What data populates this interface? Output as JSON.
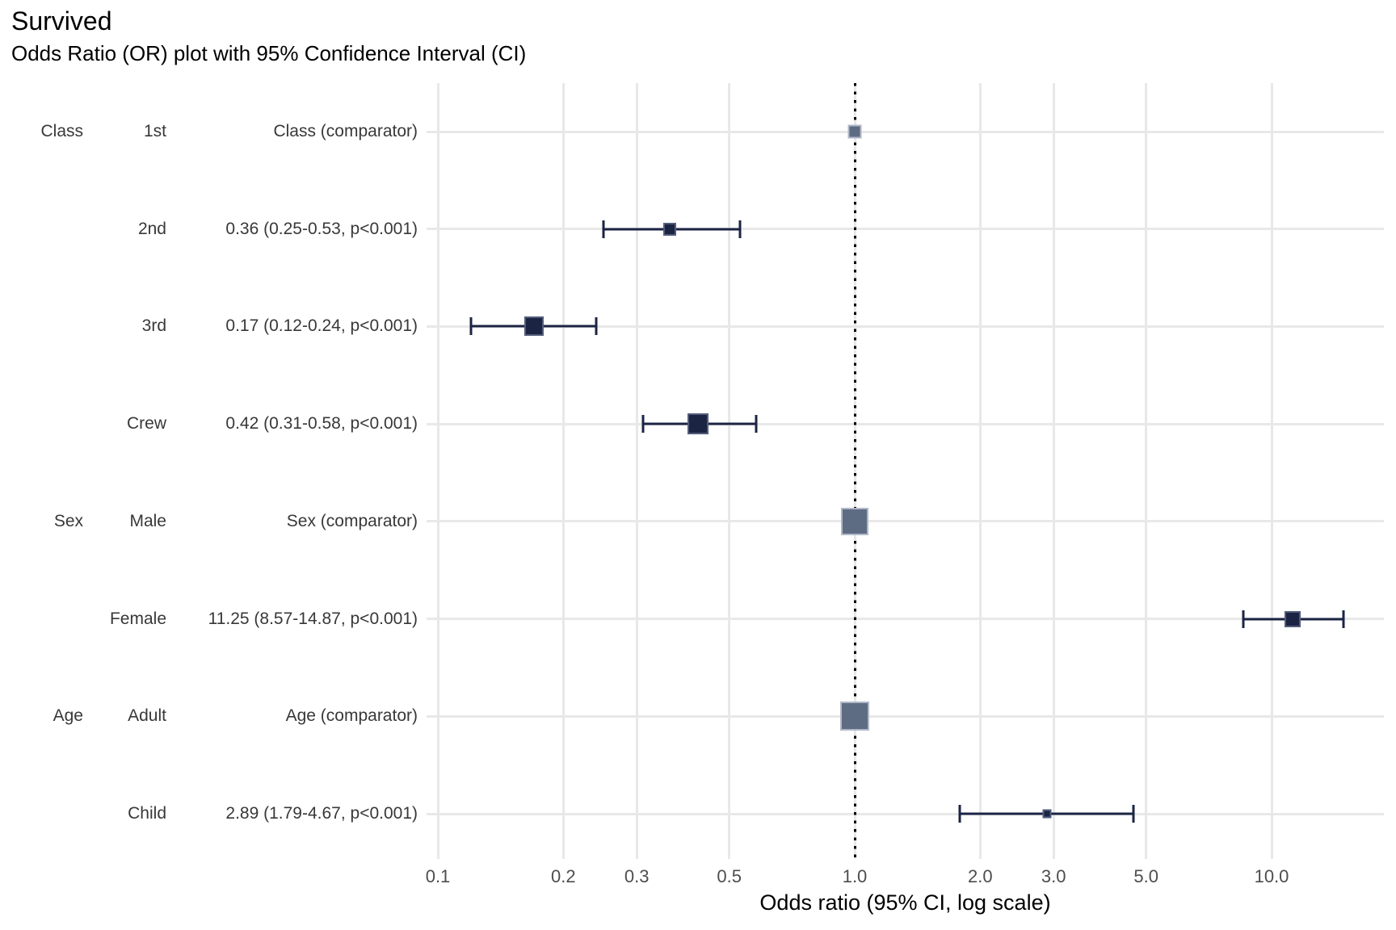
{
  "header": {
    "title": "Survived",
    "subtitle": "Odds Ratio (OR) plot with 95% Confidence Interval (CI)"
  },
  "chart_data": {
    "type": "forest-plot",
    "title": "Survived",
    "subtitle": "Odds Ratio (OR) plot with 95% Confidence Interval (CI)",
    "xlabel": "Odds ratio (95% CI, log scale)",
    "x_scale": "log10",
    "x_ticks": [
      0.1,
      0.2,
      0.3,
      0.5,
      1.0,
      2.0,
      3.0,
      5.0,
      10.0
    ],
    "x_tick_labels": [
      "0.1",
      "0.2",
      "0.3",
      "0.5",
      "1.0",
      "2.0",
      "3.0",
      "5.0",
      "10.0"
    ],
    "reference_line_x": 1.0,
    "grid": true,
    "legend_position": "none",
    "rows": [
      {
        "group": "Class",
        "level": "1st",
        "annotation": "Class (comparator)",
        "or": 1.0,
        "ci_low": null,
        "ci_high": null,
        "comparator": true,
        "marker_size": 17
      },
      {
        "group": "",
        "level": "2nd",
        "annotation": "0.36 (0.25-0.53, p<0.001)",
        "or": 0.36,
        "ci_low": 0.25,
        "ci_high": 0.53,
        "comparator": false,
        "marker_size": 16
      },
      {
        "group": "",
        "level": "3rd",
        "annotation": "0.17 (0.12-0.24, p<0.001)",
        "or": 0.17,
        "ci_low": 0.12,
        "ci_high": 0.24,
        "comparator": false,
        "marker_size": 24
      },
      {
        "group": "",
        "level": "Crew",
        "annotation": "0.42 (0.31-0.58, p<0.001)",
        "or": 0.42,
        "ci_low": 0.31,
        "ci_high": 0.58,
        "comparator": false,
        "marker_size": 26
      },
      {
        "group": "Sex",
        "level": "Male",
        "annotation": "Sex (comparator)",
        "or": 1.0,
        "ci_low": null,
        "ci_high": null,
        "comparator": true,
        "marker_size": 34
      },
      {
        "group": "",
        "level": "Female",
        "annotation": "11.25 (8.57-14.87, p<0.001)",
        "or": 11.25,
        "ci_low": 8.57,
        "ci_high": 14.87,
        "comparator": false,
        "marker_size": 20
      },
      {
        "group": "Age",
        "level": "Adult",
        "annotation": "Age (comparator)",
        "or": 1.0,
        "ci_low": null,
        "ci_high": null,
        "comparator": true,
        "marker_size": 36
      },
      {
        "group": "",
        "level": "Child",
        "annotation": "2.89 (1.79-4.67, p<0.001)",
        "or": 2.89,
        "ci_low": 1.79,
        "ci_high": 4.67,
        "comparator": false,
        "marker_size": 11
      }
    ],
    "colors": {
      "estimate_marker": "#1c2444",
      "comparator_marker": "#5d6c82",
      "ci_line": "#1c2444",
      "gridline": "#e8e8e8",
      "reference_line": "#000000",
      "tick_label": "#4d4d4d",
      "row_label": "#383838",
      "title": "#000000"
    }
  }
}
